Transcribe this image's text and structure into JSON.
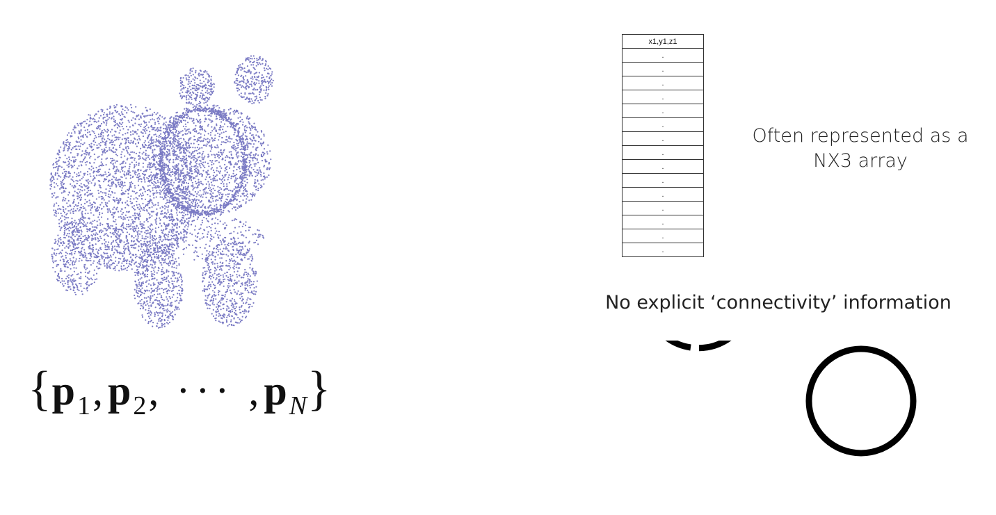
{
  "formula": {
    "open_brace": "{",
    "p1": "p",
    "sub1": "1",
    "p2": "p",
    "sub2": "2",
    "dots": "···",
    "pN": "p",
    "subN": "N",
    "close_brace": "}"
  },
  "array": {
    "header": "x1,y1,z1",
    "rows": [
      ".",
      ".",
      ".",
      ".",
      ".",
      ".",
      ".",
      ".",
      ".",
      ".",
      ".",
      ".",
      ".",
      ".",
      "."
    ]
  },
  "repr_text": {
    "line1": "Often represented as a",
    "line2": "NX3 array"
  },
  "connectivity_text": "No explicit ‘connectivity’ information",
  "colors": {
    "points": "#7b7bc4",
    "ink": "#111111"
  }
}
